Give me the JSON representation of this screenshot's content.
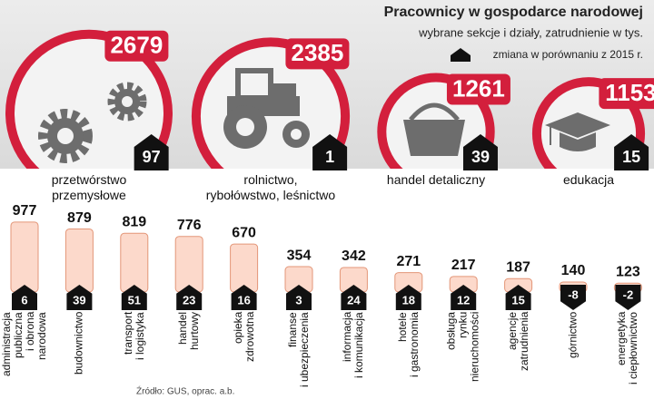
{
  "chart_data": [
    {
      "type": "circle",
      "title": "Pracownicy w gospodarce narodowej",
      "subtitle": "wybrane sekcje i działy, zatrudnienie w tys.",
      "change_label": "zmiana w porównaniu z 2015 r.",
      "categories": [
        "przetwórstwo\nprzemysłowe",
        "rolnictwo,\nrybołówstwo, leśnictwo",
        "handel detaliczny",
        "edukacja"
      ],
      "values": [
        2679,
        2385,
        1261,
        1153
      ],
      "changes": [
        97,
        1,
        39,
        15
      ],
      "color": "#d31f3c"
    },
    {
      "type": "bar",
      "categories": [
        "administracja\npubliczna\ni obrona\nnarodowa",
        "budownictwo",
        "transport\ni logistyka",
        "handel\nhurtowy",
        "opieka\nzdrowotna",
        "finanse\ni ubezpieczenia",
        "informacja\ni komunikacja",
        "hotele\ni gastronomia",
        "obsługa\nrynku\nnieruchomości",
        "agencje\nzatrudnienia",
        "górnictwo",
        "energetyka\ni ciepłownictwo"
      ],
      "values": [
        977,
        879,
        819,
        776,
        670,
        354,
        342,
        271,
        217,
        187,
        140,
        123
      ],
      "changes": [
        6,
        39,
        51,
        23,
        16,
        3,
        24,
        18,
        12,
        15,
        -8,
        -2
      ],
      "color": "#fcd9cb",
      "note": "Źródło: GUS, oprac. a.b."
    }
  ]
}
